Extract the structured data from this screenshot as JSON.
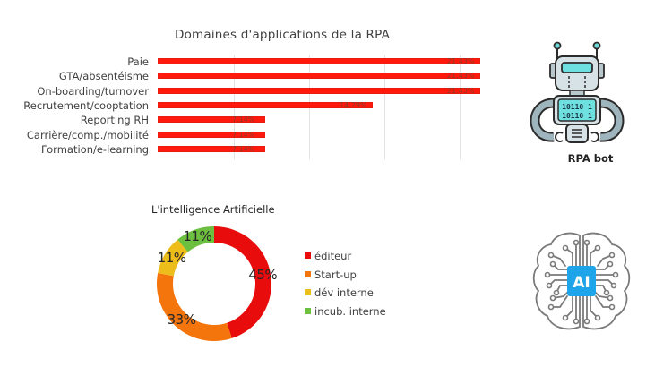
{
  "chart_data": [
    {
      "type": "bar",
      "orientation": "horizontal",
      "title": "Domaines d'applications de la RPA",
      "categories": [
        "Paie",
        "GTA/absentéisme",
        "On-boarding/turnover",
        "Recrutement/cooptation",
        "Reporting RH",
        "Carrière/comp./mobilité",
        "Formation/e-learning"
      ],
      "values": [
        21.43,
        21.43,
        21.43,
        14.29,
        7.14,
        7.14,
        7.14
      ],
      "value_labels": [
        "21,43%",
        "21,43%",
        "21,43%",
        "14,29%",
        "7,14%",
        "7,14%",
        "7,14%"
      ],
      "xlabel": "",
      "ylabel": "",
      "xlim": [
        0,
        22
      ],
      "grid": true,
      "grid_step": 5,
      "color": "#ff1a0d"
    },
    {
      "type": "pie",
      "subtype": "donut",
      "title": "L'intelligence Artificielle",
      "categories": [
        "éditeur",
        "Start-up",
        "dév interne",
        "incub. interne"
      ],
      "values": [
        45,
        33,
        11,
        11
      ],
      "value_labels": [
        "45%",
        "33%",
        "11%",
        "11%"
      ],
      "colors": [
        "#e80c0c",
        "#f5750d",
        "#edbd1c",
        "#6cbf3f"
      ],
      "legend_position": "right"
    }
  ],
  "bar_chart": {
    "title": "Domaines d'applications de la RPA",
    "rows": [
      {
        "label": "Paie",
        "value": 21.43,
        "value_label": "21,43%"
      },
      {
        "label": "GTA/absentéisme",
        "value": 21.43,
        "value_label": "21,43%"
      },
      {
        "label": "On-boarding/turnover",
        "value": 21.43,
        "value_label": "21,43%"
      },
      {
        "label": "Recrutement/cooptation",
        "value": 14.29,
        "value_label": "14,29%"
      },
      {
        "label": "Reporting RH",
        "value": 7.14,
        "value_label": "7,14%"
      },
      {
        "label": "Carrière/comp./mobilité",
        "value": 7.14,
        "value_label": "7,14%"
      },
      {
        "label": "Formation/e-learning",
        "value": 7.14,
        "value_label": "7,14%"
      }
    ]
  },
  "donut_chart": {
    "title": "L'intelligence Artificielle",
    "slices": [
      {
        "label": "éditeur",
        "value": 45,
        "value_label": "45%",
        "color": "#e80c0c"
      },
      {
        "label": "Start-up",
        "value": 33,
        "value_label": "33%",
        "color": "#f5750d"
      },
      {
        "label": "dév interne",
        "value": 11,
        "value_label": "11%",
        "color": "#edbd1c"
      },
      {
        "label": "incub. interne",
        "value": 11,
        "value_label": "11%",
        "color": "#6cbf3f"
      }
    ]
  },
  "illustrations": {
    "robot": {
      "icon": "robot-icon",
      "caption": "RPA bot",
      "screen_text": [
        "10110 1",
        "10110 1"
      ]
    },
    "brain": {
      "icon": "ai-brain-icon",
      "chip_text": "AI",
      "chip_color": "#1ea4e8"
    }
  }
}
